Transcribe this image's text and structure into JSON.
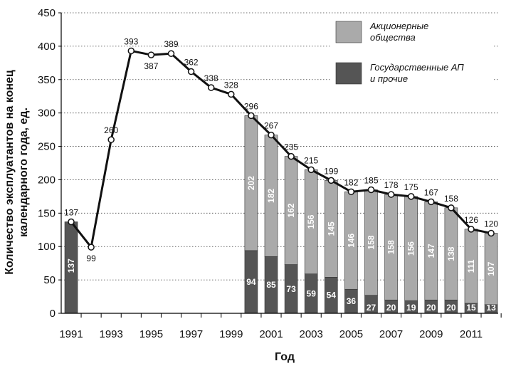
{
  "chart_data": {
    "type": "bar",
    "xlabel": "Год",
    "ylabel_lines": [
      "Количество эксплуатантов на конец",
      "календарного года, ед."
    ],
    "ylim": [
      0,
      450
    ],
    "yticks": [
      0,
      50,
      100,
      150,
      200,
      250,
      300,
      350,
      400,
      450
    ],
    "x_tick_labels": [
      "1991",
      "1993",
      "1995",
      "1997",
      "1999",
      "2001",
      "2003",
      "2005",
      "2007",
      "2009",
      "2011"
    ],
    "years": [
      1991,
      1992,
      1993,
      1994,
      1995,
      1996,
      1997,
      1998,
      1999,
      2000,
      2001,
      2002,
      2003,
      2004,
      2005,
      2006,
      2007,
      2008,
      2009,
      2010,
      2011,
      2012
    ],
    "total_line": {
      "values": [
        137,
        99,
        260,
        393,
        387,
        389,
        362,
        338,
        328,
        296,
        267,
        235,
        215,
        199,
        182,
        185,
        178,
        175,
        167,
        158,
        126,
        120
      ],
      "labels": [
        "137",
        "99",
        "260",
        "393",
        "387",
        "389",
        "362",
        "338",
        "328",
        "296",
        "267",
        "235",
        "215",
        "199",
        "182",
        "185",
        "178",
        "175",
        "167",
        "158",
        "126",
        "120"
      ]
    },
    "series": [
      {
        "name": "Государственные АП и прочие",
        "values": [
          137,
          null,
          null,
          null,
          null,
          null,
          null,
          null,
          null,
          94,
          85,
          73,
          59,
          54,
          36,
          27,
          20,
          19,
          20,
          20,
          15,
          13
        ],
        "labels": [
          "137",
          "",
          "",
          "",
          "",
          "",
          "",
          "",
          "",
          "94",
          "85",
          "73",
          "59",
          "54",
          "36",
          "27",
          "20",
          "19",
          "20",
          "20",
          "15",
          "13"
        ],
        "color": "#555555"
      },
      {
        "name": "Акционерные общества",
        "values": [
          null,
          null,
          null,
          null,
          null,
          null,
          null,
          null,
          null,
          202,
          182,
          162,
          156,
          145,
          146,
          158,
          158,
          156,
          147,
          138,
          111,
          107
        ],
        "labels": [
          "",
          "",
          "",
          "",
          "",
          "",
          "",
          "",
          "",
          "202",
          "182",
          "162",
          "156",
          "145",
          "146",
          "158",
          "158",
          "156",
          "147",
          "138",
          "111",
          "107"
        ],
        "color": "#aaaaaa"
      }
    ],
    "legend": {
      "position": "top-right",
      "items": [
        {
          "line1": "Акционерные",
          "line2": "общества",
          "color": "#aaaaaa"
        },
        {
          "line1": "Государственные АП",
          "line2": "и прочие",
          "color": "#555555"
        }
      ]
    },
    "grid": "horizontal"
  }
}
